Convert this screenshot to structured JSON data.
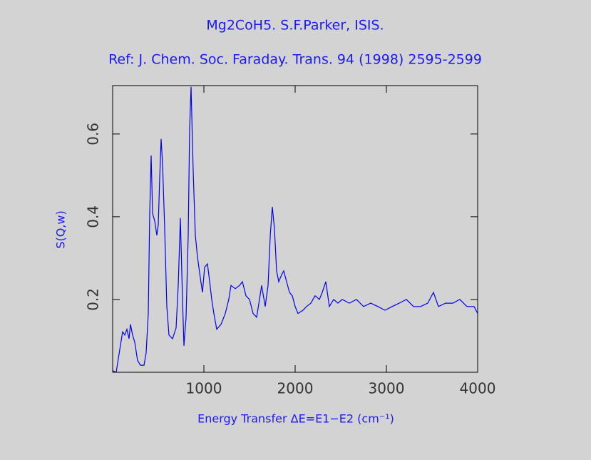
{
  "chart_data": {
    "type": "line",
    "title": "Mg2CoH5. S.F.Parker, ISIS.",
    "subtitle": "Ref: J. Chem. Soc. Faraday. Trans. 94 (1998) 2595-2599",
    "xlabel": "Energy Transfer ΔE=E1−E2 (cm⁻¹)",
    "ylabel": "S(Q,w)",
    "xlim": [
      0,
      4000
    ],
    "ylim": [
      0.024,
      0.717
    ],
    "xticks": [
      1000,
      2000,
      3000,
      4000
    ],
    "yticks": [
      0.2,
      0.4,
      0.6
    ],
    "x": [
      0,
      39,
      78,
      109,
      133,
      156,
      180,
      195,
      219,
      242,
      273,
      305,
      344,
      367,
      391,
      406,
      422,
      438,
      461,
      484,
      500,
      516,
      531,
      547,
      570,
      594,
      617,
      656,
      695,
      719,
      742,
      766,
      781,
      805,
      828,
      844,
      859,
      883,
      906,
      930,
      961,
      984,
      1008,
      1039,
      1063,
      1086,
      1109,
      1141,
      1188,
      1234,
      1273,
      1297,
      1344,
      1391,
      1422,
      1461,
      1500,
      1539,
      1578,
      1609,
      1633,
      1672,
      1703,
      1727,
      1750,
      1773,
      1797,
      1820,
      1852,
      1875,
      1906,
      1938,
      1969,
      2000,
      2031,
      2086,
      2125,
      2172,
      2219,
      2266,
      2297,
      2336,
      2375,
      2422,
      2469,
      2516,
      2594,
      2672,
      2750,
      2828,
      2906,
      2984,
      3063,
      3141,
      3219,
      3297,
      3375,
      3453,
      3516,
      3570,
      3648,
      3727,
      3805,
      3883,
      3961,
      4000
    ],
    "series": [
      {
        "color": "#0000ee",
        "values": [
          0.028,
          0.024,
          0.079,
          0.122,
          0.114,
          0.128,
          0.105,
          0.14,
          0.114,
          0.097,
          0.053,
          0.041,
          0.041,
          0.071,
          0.166,
          0.407,
          0.548,
          0.407,
          0.39,
          0.355,
          0.381,
          0.493,
          0.588,
          0.528,
          0.372,
          0.183,
          0.114,
          0.105,
          0.131,
          0.234,
          0.397,
          0.2,
          0.088,
          0.157,
          0.355,
          0.614,
          0.714,
          0.51,
          0.355,
          0.303,
          0.252,
          0.217,
          0.278,
          0.286,
          0.243,
          0.2,
          0.166,
          0.128,
          0.14,
          0.166,
          0.2,
          0.234,
          0.226,
          0.234,
          0.243,
          0.209,
          0.2,
          0.166,
          0.157,
          0.2,
          0.234,
          0.183,
          0.234,
          0.355,
          0.424,
          0.372,
          0.269,
          0.243,
          0.26,
          0.269,
          0.243,
          0.217,
          0.209,
          0.183,
          0.166,
          0.174,
          0.183,
          0.191,
          0.209,
          0.2,
          0.217,
          0.243,
          0.183,
          0.2,
          0.191,
          0.2,
          0.191,
          0.2,
          0.183,
          0.191,
          0.183,
          0.174,
          0.183,
          0.191,
          0.2,
          0.183,
          0.183,
          0.191,
          0.217,
          0.183,
          0.191,
          0.191,
          0.2,
          0.183,
          0.183,
          0.166
        ]
      }
    ]
  }
}
